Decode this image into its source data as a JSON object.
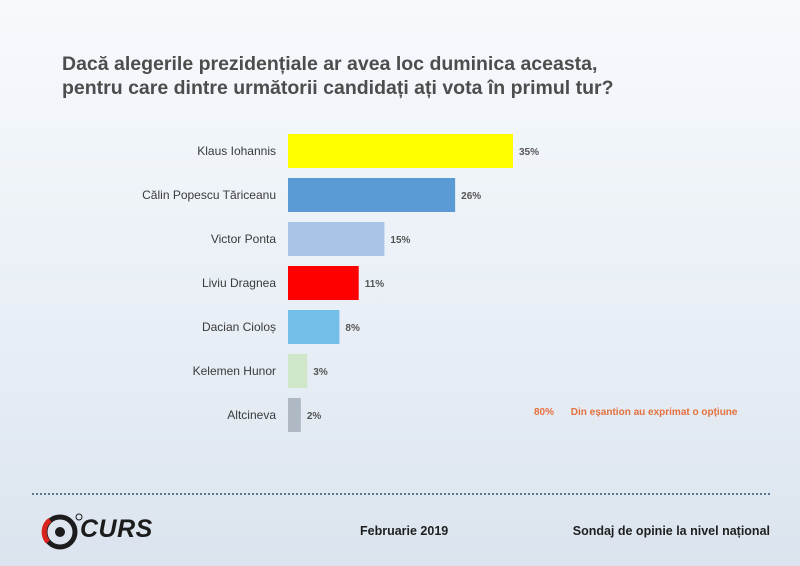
{
  "title": {
    "line1": "Dacă alegerile prezidențiale ar avea loc duminica aceasta,",
    "line2": "pentru care dintre următorii candidați ați vota în primul tur?"
  },
  "chart_data": {
    "type": "bar",
    "orientation": "horizontal",
    "categories": [
      "Klaus Iohannis",
      "Călin Popescu Tăriceanu",
      "Victor Ponta",
      "Liviu Dragnea",
      "Dacian Cioloș",
      "Kelemen Hunor",
      "Altcineva"
    ],
    "values": [
      35,
      26,
      15,
      11,
      8,
      3,
      2
    ],
    "value_labels": [
      "35%",
      "26%",
      "15%",
      "11%",
      "8%",
      "3%",
      "2%"
    ],
    "colors": [
      "#ffff00",
      "#5b9bd5",
      "#a8c5e8",
      "#ff0000",
      "#74bfe9",
      "#cfe6c8",
      "#aeb9c4"
    ],
    "unit": "%",
    "xlabel": "",
    "ylabel": "",
    "xlim": [
      0,
      35
    ]
  },
  "note": {
    "percent": "80%",
    "text": "Din eșantion au exprimat o opțiune"
  },
  "footer": {
    "logo_text": "CURS",
    "date": "Februarie 2019",
    "survey": "Sondaj de opinie la nivel național"
  },
  "colors": {
    "title": "#4d4d4d",
    "note": "#e4703e",
    "logo_red": "#d9231f"
  }
}
